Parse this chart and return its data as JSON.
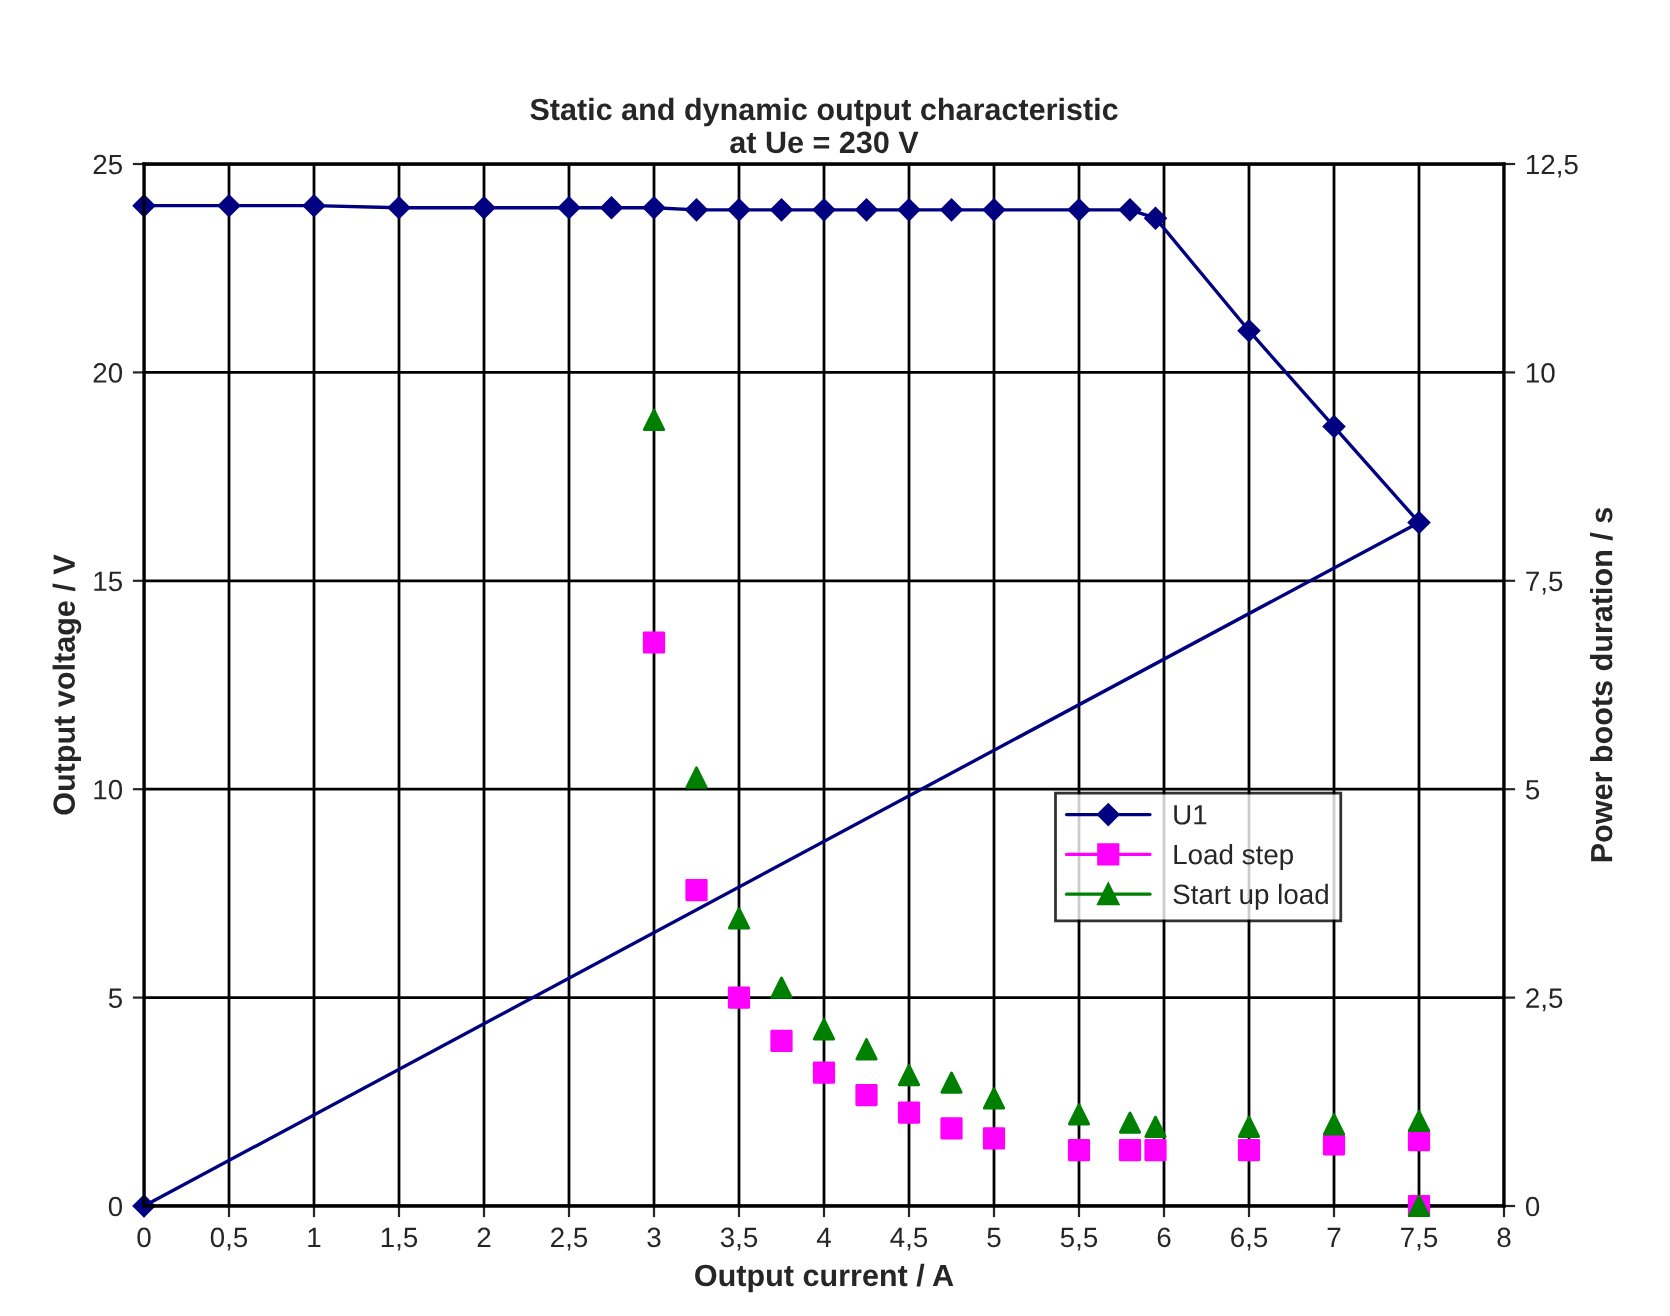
{
  "chart_data": {
    "type": "line",
    "title": "Static and dynamic output characteristic\nat Ue = 230 V",
    "xlabel": "Output current / A",
    "ylabel": "Output voltage / V",
    "y2label": "Power boots duration / s",
    "xlim": [
      0,
      8
    ],
    "xticks": [
      0,
      {
        "value": 0.5,
        "label": "0,5"
      },
      1,
      {
        "value": 1.5,
        "label": "1,5"
      },
      2,
      {
        "value": 2.5,
        "label": "2,5"
      },
      3,
      {
        "value": 3.5,
        "label": "3,5"
      },
      4,
      {
        "value": 4.5,
        "label": "4,5"
      },
      5,
      {
        "value": 5.5,
        "label": "5,5"
      },
      6,
      {
        "value": 6.5,
        "label": "6,5"
      },
      7,
      {
        "value": 7.5,
        "label": "7,5"
      },
      8
    ],
    "ylim": [
      0,
      25
    ],
    "yticks": [
      0,
      5,
      10,
      15,
      20,
      25
    ],
    "y2lim": [
      0,
      12.5
    ],
    "y2ticks": [
      0,
      {
        "value": 2.5,
        "label": "2,5"
      },
      5,
      {
        "value": 7.5,
        "label": "7,5"
      },
      10,
      {
        "value": 12.5,
        "label": "12,5"
      }
    ],
    "grid": true,
    "legend": "right",
    "series": [
      {
        "name": "U1",
        "color": "#000080",
        "marker": "diamond",
        "x": [
          0,
          0.5,
          1,
          1.5,
          2,
          2.5,
          2.75,
          3,
          3.25,
          3.5,
          3.75,
          4,
          4.25,
          4.5,
          4.75,
          5,
          5.5,
          5.8,
          5.95,
          6.5,
          7,
          7.5,
          0
        ],
        "values": [
          24,
          24,
          24,
          23.95,
          23.95,
          23.95,
          23.95,
          23.95,
          23.9,
          23.9,
          23.9,
          23.9,
          23.9,
          23.9,
          23.9,
          23.9,
          23.9,
          23.9,
          23.7,
          21.0,
          18.7,
          16.4,
          0
        ]
      },
      {
        "name": "Load step",
        "color": "#ff00ff",
        "type": "scatter",
        "marker": "square",
        "axis": "y2",
        "x": [
          3,
          3.25,
          3.5,
          3.75,
          4,
          4.25,
          4.5,
          4.75,
          5,
          5.5,
          5.8,
          5.95,
          6.5,
          7,
          7.5,
          7.5
        ],
        "values": [
          6.76,
          3.79,
          2.5,
          1.98,
          1.6,
          1.33,
          1.12,
          0.93,
          0.81,
          0.67,
          0.67,
          0.67,
          0.67,
          0.74,
          0.79,
          0
        ]
      },
      {
        "name": "Start up load",
        "color": "#008000",
        "type": "scatter",
        "marker": "triangle",
        "axis": "y2",
        "x": [
          3,
          3.25,
          3.5,
          3.75,
          4,
          4.25,
          4.5,
          4.75,
          5,
          5.5,
          5.8,
          5.95,
          6.5,
          7,
          7.5,
          7.5
        ],
        "values": [
          9.43,
          5.14,
          3.45,
          2.62,
          2.12,
          1.88,
          1.57,
          1.48,
          1.29,
          1.1,
          1.0,
          0.95,
          0.95,
          0.98,
          1.02,
          0
        ]
      }
    ]
  }
}
